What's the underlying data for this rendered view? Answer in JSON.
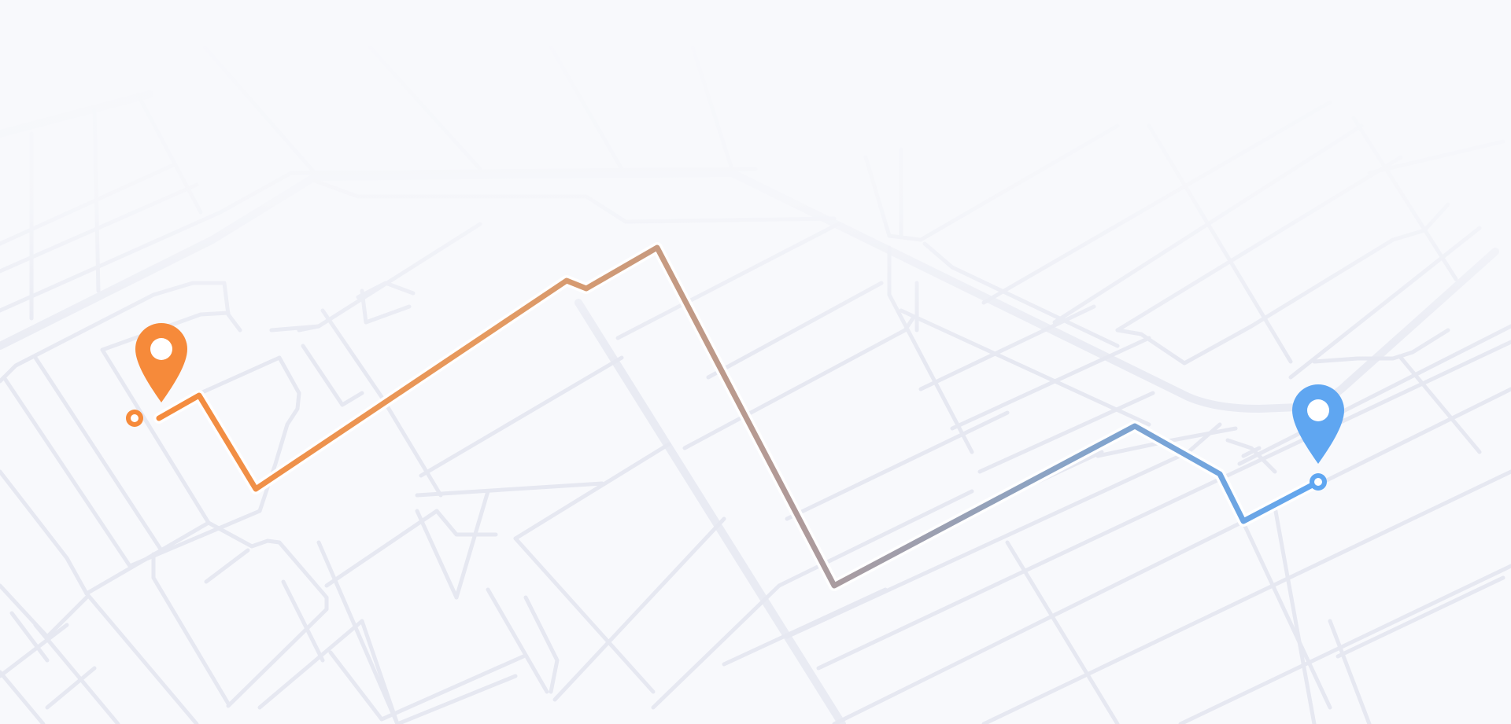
{
  "map": {
    "background": "#f8f9fc",
    "street_color": "#e6e8f1"
  },
  "route": {
    "start_color": "#f68a3a",
    "mid_color": "#b09a98",
    "end_color": "#5fa6f1"
  },
  "markers": {
    "origin": {
      "icon": "map-pin-icon",
      "color": "#f68a3a"
    },
    "destination": {
      "icon": "map-pin-icon",
      "color": "#5fa6f1"
    }
  }
}
